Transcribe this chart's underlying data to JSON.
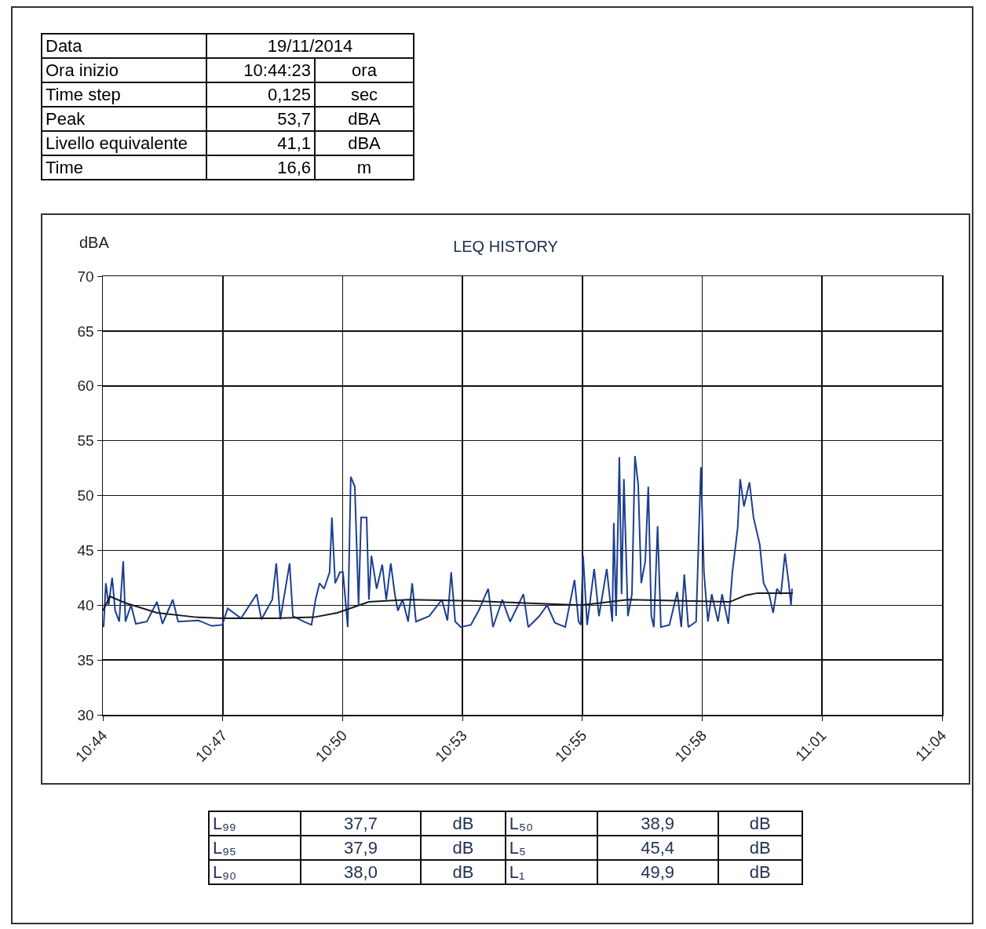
{
  "chart_data": {
    "type": "line",
    "title": "LEQ HISTORY",
    "ylabel": "dBA",
    "xlim": [
      10.7333,
      11.0667
    ],
    "ylim": [
      30,
      70
    ],
    "xticks": [
      {
        "value": 10.7333,
        "label": "10:44"
      },
      {
        "value": 10.781,
        "label": "10:47"
      },
      {
        "value": 10.8286,
        "label": "10:50"
      },
      {
        "value": 10.8762,
        "label": "10:53"
      },
      {
        "value": 10.9238,
        "label": "10:55"
      },
      {
        "value": 10.9714,
        "label": "10:58"
      },
      {
        "value": 11.019,
        "label": "11:01"
      },
      {
        "value": 11.0667,
        "label": "11:04"
      }
    ],
    "yticks": [
      30,
      35,
      40,
      45,
      50,
      55,
      60,
      65,
      70
    ],
    "grid": true,
    "series": [
      {
        "color": "#1d3f91",
        "x": [
          10.7336,
          10.7345,
          10.7356,
          10.737,
          10.7382,
          10.7398,
          10.7414,
          10.7423,
          10.7445,
          10.7464,
          10.7508,
          10.7548,
          10.757,
          10.7611,
          10.7632,
          10.7713,
          10.7766,
          10.7807,
          10.7829,
          10.7882,
          10.7944,
          10.7963,
          10.8006,
          10.8022,
          10.8038,
          10.8075,
          10.8088,
          10.8131,
          10.8162,
          10.8178,
          10.8194,
          10.8212,
          10.8234,
          10.8243,
          10.8256,
          10.8275,
          10.8287,
          10.8306,
          10.8318,
          10.8334,
          10.8349,
          10.8359,
          10.8381,
          10.839,
          10.84,
          10.8421,
          10.8443,
          10.8459,
          10.8477,
          10.8493,
          10.8505,
          10.8524,
          10.8546,
          10.8562,
          10.8577,
          10.863,
          10.868,
          10.8702,
          10.8717,
          10.8733,
          10.8755,
          10.8795,
          10.8826,
          10.8864,
          10.8883,
          10.892,
          10.8951,
          10.9004,
          10.9023,
          10.9067,
          10.9098,
          10.9129,
          10.917,
          10.9207,
          10.9223,
          10.9232,
          10.9241,
          10.9257,
          10.9285,
          10.9304,
          10.9335,
          10.9357,
          10.9363,
          10.9372,
          10.9385,
          10.9394,
          10.9403,
          10.9419,
          10.9435,
          10.9447,
          10.946,
          10.9472,
          10.9488,
          10.95,
          10.9512,
          10.9522,
          10.9537,
          10.955,
          10.9584,
          10.9615,
          10.9631,
          10.9643,
          10.9659,
          10.969,
          10.9709,
          10.9721,
          10.9737,
          10.9752,
          10.9777,
          10.9793,
          10.9818,
          10.9834,
          10.9855,
          10.9865,
          10.988,
          10.9902,
          10.9918,
          10.9943,
          10.9958,
          10.998,
          10.9996,
          11.0011,
          11.0027,
          11.0043,
          11.0058,
          11.0067,
          11.0071
        ],
        "values": [
          38,
          42,
          40,
          42.5,
          39.5,
          38.5,
          44,
          38.5,
          40,
          38.3,
          38.5,
          40.3,
          38.3,
          40.5,
          38.5,
          38.6,
          38.1,
          38.2,
          39.7,
          38.8,
          41,
          38.7,
          40.5,
          43.8,
          38.7,
          43.8,
          39,
          38.5,
          38.2,
          40.5,
          42,
          41.5,
          43,
          48,
          42,
          43,
          43,
          38,
          51.7,
          50.8,
          40,
          48,
          48,
          40.5,
          44.5,
          41.5,
          43.7,
          40.5,
          43.8,
          41,
          39.5,
          40.5,
          38.5,
          42,
          38.5,
          39,
          40.5,
          38.6,
          43,
          38.5,
          38,
          38.2,
          39.5,
          41.5,
          38,
          40.5,
          38.5,
          41,
          38,
          39,
          40,
          38.4,
          38,
          42.3,
          38.5,
          38.2,
          44.5,
          38.2,
          43.3,
          39,
          43.3,
          38.5,
          47.5,
          39,
          53.5,
          41,
          51.5,
          39,
          41,
          53.6,
          51,
          42,
          44,
          50.8,
          39,
          38,
          47.2,
          38,
          38.2,
          41.2,
          38,
          42.8,
          38,
          38.5,
          52.6,
          43,
          38.5,
          41,
          38.5,
          41,
          38.3,
          43,
          47,
          51.5,
          49,
          51.2,
          48,
          45.5,
          42,
          41,
          39.3,
          41.5,
          41,
          44.7,
          42,
          40,
          41.5
        ]
      },
      {
        "color": "#1a1a1a",
        "x": [
          10.7333,
          10.7361,
          10.7423,
          10.7548,
          10.7704,
          10.7807,
          10.8016,
          10.8172,
          10.8265,
          10.8328,
          10.839,
          10.8546,
          10.8795,
          10.9107,
          10.9232,
          10.9419,
          10.9824,
          10.9887,
          10.9934,
          11.0074
        ],
        "values": [
          39.5,
          40.8,
          40.2,
          39.3,
          38.9,
          38.8,
          38.8,
          38.9,
          39.3,
          39.8,
          40.3,
          40.5,
          40.4,
          40.1,
          40,
          40.5,
          40.3,
          40.9,
          41.1,
          41.1
        ]
      }
    ],
    "annotations": [
      "Data",
      "19/11/2014",
      "Ora inizio",
      "10:44:23",
      "ora",
      "Time step",
      "0,125",
      "sec",
      "Peak",
      "53,7",
      "dBA",
      "Livello equivalente",
      "41,1",
      "dBA",
      "Time",
      "16,6",
      "m",
      "L₉₉",
      "37,7",
      "dB",
      "L₅₀",
      "38,9",
      "dB",
      "L₉₅",
      "37,9",
      "dB",
      "L₅",
      "45,4",
      "dB",
      "L₉₀",
      "38,0",
      "dB",
      "L₁",
      "49,9",
      "dB"
    ]
  }
}
